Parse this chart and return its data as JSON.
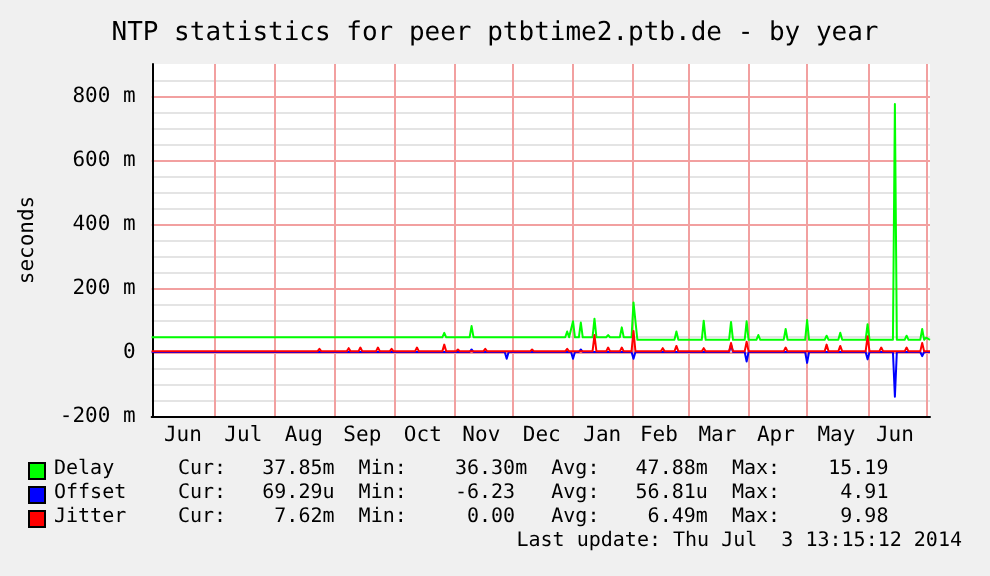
{
  "chart_data": {
    "type": "line",
    "title": "NTP statistics for peer ptbtime2.ptb.de - by year",
    "ylabel": "seconds",
    "xlim": [
      "2013-05-30",
      "2014-07-03"
    ],
    "xticks": [
      {
        "value": "2013-07-01",
        "label": null
      },
      {
        "value": "2013-08-01",
        "label": null
      },
      {
        "value": "2013-09-01",
        "label": null
      },
      {
        "value": "2013-10-01",
        "label": null
      },
      {
        "value": "2013-11-01",
        "label": null
      },
      {
        "value": "2013-12-01",
        "label": null
      },
      {
        "value": "2014-01-01",
        "label": null
      },
      {
        "value": "2014-02-01",
        "label": null
      },
      {
        "value": "2014-03-01",
        "label": null
      },
      {
        "value": "2014-04-01",
        "label": null
      },
      {
        "value": "2014-05-01",
        "label": null
      },
      {
        "value": "2014-06-01",
        "label": null
      },
      {
        "value": "2014-07-01",
        "label": null
      },
      {
        "value": "2013-06-15",
        "label": "Jun"
      },
      {
        "value": "2013-07-16",
        "label": "Jul"
      },
      {
        "value": "2013-08-16",
        "label": "Aug"
      },
      {
        "value": "2013-09-15",
        "label": "Sep"
      },
      {
        "value": "2013-10-16",
        "label": "Oct"
      },
      {
        "value": "2013-11-15",
        "label": "Nov"
      },
      {
        "value": "2013-12-16",
        "label": "Dec"
      },
      {
        "value": "2014-01-16",
        "label": "Jan"
      },
      {
        "value": "2014-02-14",
        "label": "Feb"
      },
      {
        "value": "2014-03-16",
        "label": "Mar"
      },
      {
        "value": "2014-04-15",
        "label": "Apr"
      },
      {
        "value": "2014-05-16",
        "label": "May"
      },
      {
        "value": "2014-06-15",
        "label": "Jun"
      }
    ],
    "ylim": [
      -200,
      900
    ],
    "yticks": [
      {
        "value": -200,
        "label": "-200 m"
      },
      {
        "value": -150,
        "label": null
      },
      {
        "value": -100,
        "label": null
      },
      {
        "value": -50,
        "label": null
      },
      0,
      {
        "value": 50,
        "label": null
      },
      {
        "value": 100,
        "label": null
      },
      {
        "value": 150,
        "label": null
      },
      {
        "value": 200,
        "label": "200 m"
      },
      {
        "value": 250,
        "label": null
      },
      {
        "value": 300,
        "label": null
      },
      {
        "value": 350,
        "label": null
      },
      {
        "value": 400,
        "label": "400 m"
      },
      {
        "value": 450,
        "label": null
      },
      {
        "value": 500,
        "label": null
      },
      {
        "value": 550,
        "label": null
      },
      {
        "value": 600,
        "label": "600 m"
      },
      {
        "value": 650,
        "label": null
      },
      {
        "value": 700,
        "label": null
      },
      {
        "value": 750,
        "label": null
      },
      {
        "value": 800,
        "label": "800 m"
      },
      {
        "value": 850,
        "label": null
      }
    ],
    "grid": true,
    "legend": "bottom",
    "marker": "none",
    "line_style": "solid",
    "series": [
      {
        "name": "Delay",
        "color": "#00ff00",
        "x": [
          "2013-05-30",
          "2013-10-26",
          "2013-10-27",
          "2013-10-28",
          "2013-11-09",
          "2013-11-10",
          "2013-11-11",
          "2013-12-28",
          "2013-12-29",
          "2013-12-30",
          "2014-01-01",
          "2014-01-02",
          "2014-01-04",
          "2014-01-05",
          "2014-01-06",
          "2014-01-11",
          "2014-01-12",
          "2014-01-13",
          "2014-01-18",
          "2014-01-19",
          "2014-01-20",
          "2014-01-25",
          "2014-01-26",
          "2014-01-27",
          "2014-01-31",
          "2014-02-01",
          "2014-02-03",
          "2014-02-22",
          "2014-02-23",
          "2014-02-24",
          "2014-03-08",
          "2014-03-09",
          "2014-03-10",
          "2014-03-22",
          "2014-03-23",
          "2014-03-24",
          "2014-03-30",
          "2014-03-31",
          "2014-04-01",
          "2014-04-05",
          "2014-04-06",
          "2014-04-07",
          "2014-04-19",
          "2014-04-20",
          "2014-04-21",
          "2014-04-30",
          "2014-05-01",
          "2014-05-02",
          "2014-05-10",
          "2014-05-11",
          "2014-05-12",
          "2014-05-17",
          "2014-05-18",
          "2014-05-19",
          "2014-05-31",
          "2014-06-01",
          "2014-06-02",
          "2014-06-14",
          "2014-06-15",
          "2014-06-16",
          "2014-06-20",
          "2014-06-21",
          "2014-06-22",
          "2014-06-28",
          "2014-06-29",
          "2014-06-30",
          "2014-07-01",
          "2014-07-03"
        ],
        "values": [
          46,
          46,
          60,
          46,
          46,
          81,
          46,
          46,
          64,
          46,
          96,
          46,
          46,
          92,
          46,
          46,
          104,
          46,
          46,
          53,
          46,
          46,
          77,
          46,
          46,
          155,
          38,
          38,
          64,
          38,
          38,
          98,
          38,
          38,
          94,
          38,
          38,
          96,
          38,
          38,
          53,
          38,
          38,
          72,
          38,
          38,
          100,
          38,
          38,
          51,
          38,
          38,
          60,
          38,
          38,
          87,
          38,
          38,
          775,
          38,
          38,
          51,
          38,
          38,
          72,
          38,
          45,
          38
        ]
      },
      {
        "name": "Offset",
        "color": "#0000ff",
        "x": [
          "2013-05-30",
          "2013-11-09",
          "2013-11-10",
          "2013-11-11",
          "2013-11-27",
          "2013-11-28",
          "2013-11-29",
          "2013-12-31",
          "2014-01-01",
          "2014-01-02",
          "2014-01-04",
          "2014-01-05",
          "2014-01-06",
          "2014-01-31",
          "2014-02-01",
          "2014-02-02",
          "2014-03-22",
          "2014-03-23",
          "2014-03-24",
          "2014-03-30",
          "2014-03-31",
          "2014-04-01",
          "2014-04-30",
          "2014-05-01",
          "2014-05-02",
          "2014-05-31",
          "2014-06-01",
          "2014-06-02",
          "2014-06-14",
          "2014-06-15",
          "2014-06-16",
          "2014-06-28",
          "2014-06-29",
          "2014-06-30",
          "2014-07-03"
        ],
        "values": [
          0,
          0,
          8,
          0,
          0,
          -21,
          0,
          0,
          -21,
          0,
          0,
          8,
          0,
          0,
          -21,
          0,
          0,
          23,
          0,
          0,
          -30,
          0,
          0,
          -34,
          0,
          0,
          -23,
          0,
          0,
          -140,
          0,
          0,
          -13,
          0,
          0
        ]
      },
      {
        "name": "Jitter",
        "color": "#ff0000",
        "x": [
          "2013-05-30",
          "2013-08-23",
          "2013-08-24",
          "2013-08-25",
          "2013-09-07",
          "2013-09-08",
          "2013-09-09",
          "2013-09-13",
          "2013-09-14",
          "2013-09-15",
          "2013-09-22",
          "2013-09-23",
          "2013-09-24",
          "2013-09-29",
          "2013-09-30",
          "2013-10-01",
          "2013-10-12",
          "2013-10-13",
          "2013-10-14",
          "2013-10-26",
          "2013-10-27",
          "2013-10-28",
          "2013-11-02",
          "2013-11-03",
          "2013-11-04",
          "2013-11-16",
          "2013-11-17",
          "2013-11-18",
          "2013-12-10",
          "2013-12-11",
          "2013-12-12",
          "2013-12-28",
          "2013-12-29",
          "2013-12-30",
          "2014-01-11",
          "2014-01-12",
          "2014-01-13",
          "2014-01-18",
          "2014-01-19",
          "2014-01-20",
          "2014-01-25",
          "2014-01-26",
          "2014-01-27",
          "2014-01-31",
          "2014-02-01",
          "2014-02-02",
          "2014-02-15",
          "2014-02-16",
          "2014-02-17",
          "2014-02-22",
          "2014-02-23",
          "2014-02-24",
          "2014-03-08",
          "2014-03-09",
          "2014-03-10",
          "2014-03-22",
          "2014-03-23",
          "2014-03-24",
          "2014-03-30",
          "2014-03-31",
          "2014-04-01",
          "2014-04-19",
          "2014-04-20",
          "2014-04-21",
          "2014-05-10",
          "2014-05-11",
          "2014-05-12",
          "2014-05-17",
          "2014-05-18",
          "2014-05-19",
          "2014-05-31",
          "2014-06-01",
          "2014-06-02",
          "2014-06-07",
          "2014-06-08",
          "2014-06-09",
          "2014-06-20",
          "2014-06-21",
          "2014-06-22",
          "2014-06-28",
          "2014-06-29",
          "2014-06-30",
          "2014-07-03"
        ],
        "values": [
          2,
          2,
          10,
          2,
          2,
          12,
          2,
          2,
          14,
          2,
          2,
          14,
          2,
          2,
          10,
          2,
          2,
          14,
          2,
          2,
          23,
          2,
          2,
          8,
          2,
          2,
          10,
          2,
          2,
          8,
          2,
          2,
          10,
          2,
          2,
          53,
          2,
          2,
          14,
          2,
          2,
          14,
          2,
          2,
          66,
          2,
          2,
          12,
          2,
          2,
          19,
          2,
          2,
          12,
          2,
          2,
          28,
          2,
          2,
          32,
          2,
          2,
          14,
          2,
          2,
          23,
          2,
          2,
          19,
          2,
          2,
          49,
          2,
          2,
          14,
          2,
          2,
          14,
          2,
          2,
          28,
          2,
          2
        ]
      }
    ],
    "annotations": [
      "Cur:   37.85m  Min:    36.30m  Avg:   47.88m  Max:    15.19",
      "Cur:   69.29u  Min:    -6.23   Avg:   56.81u  Max:     4.91",
      "Cur:    7.62m  Min:     0.00   Avg:    6.49m  Max:     9.98",
      "Last update: Thu Jul  3 13:15:12 2014"
    ]
  }
}
